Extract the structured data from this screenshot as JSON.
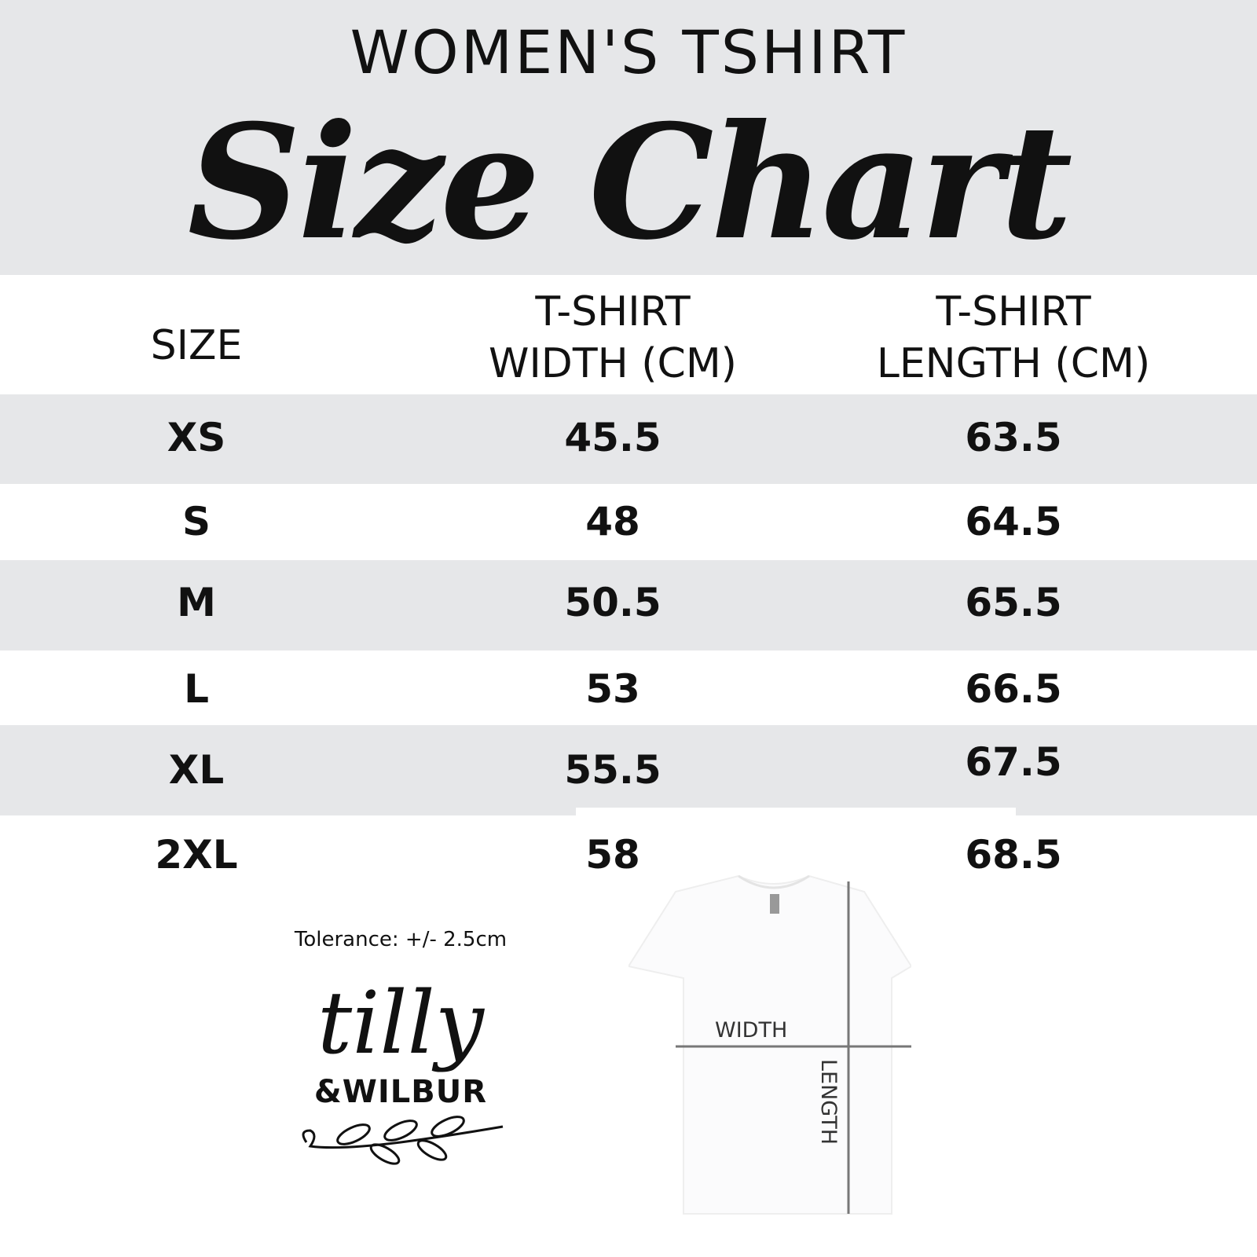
{
  "header": {
    "subtitle": "WOMEN'S TSHIRT",
    "title": "Size Chart"
  },
  "table": {
    "columns": [
      "SIZE",
      "T-SHIRT\nWIDTH (CM)",
      "T-SHIRT\nLENGTH (CM)"
    ],
    "column_lines": [
      [
        "SIZE"
      ],
      [
        "T-SHIRT",
        "WIDTH (CM)"
      ],
      [
        "T-SHIRT",
        "LENGTH (CM)"
      ]
    ],
    "rows": [
      [
        "XS",
        "45.5",
        "63.5"
      ],
      [
        "S",
        "48",
        "64.5"
      ],
      [
        "M",
        "50.5",
        "65.5"
      ],
      [
        "L",
        "53",
        "66.5"
      ],
      [
        "XL",
        "55.5",
        "67.5"
      ],
      [
        "2XL",
        "58",
        "68.5"
      ]
    ]
  },
  "tolerance": "Tolerance: +/- 2.5cm",
  "logo": {
    "line1": "tilly",
    "line2": "&WILBUR"
  },
  "diagram": {
    "width_label": "WIDTH",
    "length_label": "LENGTH"
  },
  "colors": {
    "band": "#e6e7e9",
    "text": "#111111",
    "measure_line": "#777777"
  }
}
